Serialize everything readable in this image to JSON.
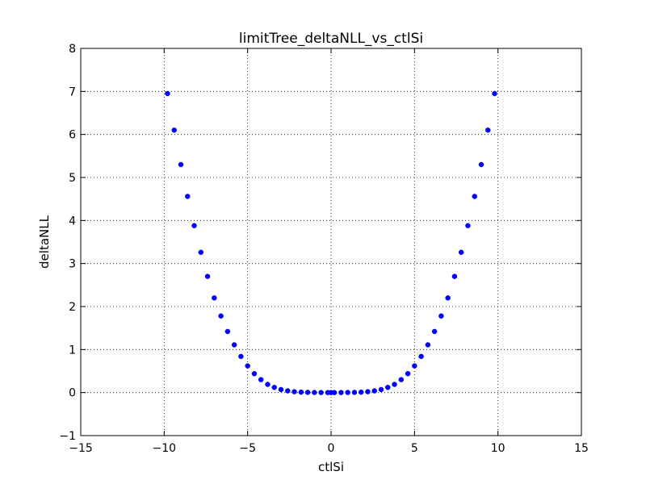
{
  "chart_data": {
    "type": "scatter",
    "title": "limitTree_deltaNLL_vs_ctlSi",
    "xlabel": "ctlSi",
    "ylabel": "deltaNLL",
    "xlim": [
      -15,
      15
    ],
    "ylim": [
      -1,
      8
    ],
    "xticks": [
      -15,
      -10,
      -5,
      0,
      5,
      10,
      15
    ],
    "yticks": [
      -1,
      0,
      1,
      2,
      3,
      4,
      5,
      6,
      7,
      8
    ],
    "xtick_labels": [
      "−15",
      "−10",
      "−5",
      "0",
      "5",
      "10",
      "15"
    ],
    "ytick_labels": [
      "−1",
      "0",
      "1",
      "2",
      "3",
      "4",
      "5",
      "6",
      "7",
      "8"
    ],
    "grid": true,
    "legend": "none",
    "marker_color": "#0000ff",
    "series": [
      {
        "x": [
          -9.8,
          -9.4,
          -9.0,
          -8.6,
          -8.2,
          -7.8,
          -7.4,
          -7.0,
          -6.6,
          -6.2,
          -5.8,
          -5.4,
          -5.0,
          -4.6,
          -4.2,
          -3.8,
          -3.4,
          -3.0,
          -2.6,
          -2.2,
          -1.8,
          -1.4,
          -1.0,
          -0.6,
          -0.2,
          0.0,
          0.2,
          0.6,
          1.0,
          1.4,
          1.8,
          2.2,
          2.6,
          3.0,
          3.4,
          3.8,
          4.2,
          4.6,
          5.0,
          5.4,
          5.8,
          6.2,
          6.6,
          7.0,
          7.4,
          7.8,
          8.2,
          8.6,
          9.0,
          9.4,
          9.8
        ],
        "y": [
          6.95,
          6.1,
          5.3,
          4.56,
          3.88,
          3.26,
          2.7,
          2.2,
          1.78,
          1.42,
          1.11,
          0.84,
          0.62,
          0.44,
          0.3,
          0.19,
          0.12,
          0.07,
          0.04,
          0.02,
          0.01,
          0.005,
          0.002,
          0.0005,
          0.0,
          0.0,
          0.0,
          0.0005,
          0.002,
          0.005,
          0.01,
          0.02,
          0.04,
          0.07,
          0.12,
          0.19,
          0.3,
          0.44,
          0.62,
          0.84,
          1.11,
          1.42,
          1.78,
          2.2,
          2.7,
          3.26,
          3.88,
          4.56,
          5.3,
          6.1,
          6.95
        ]
      }
    ]
  }
}
